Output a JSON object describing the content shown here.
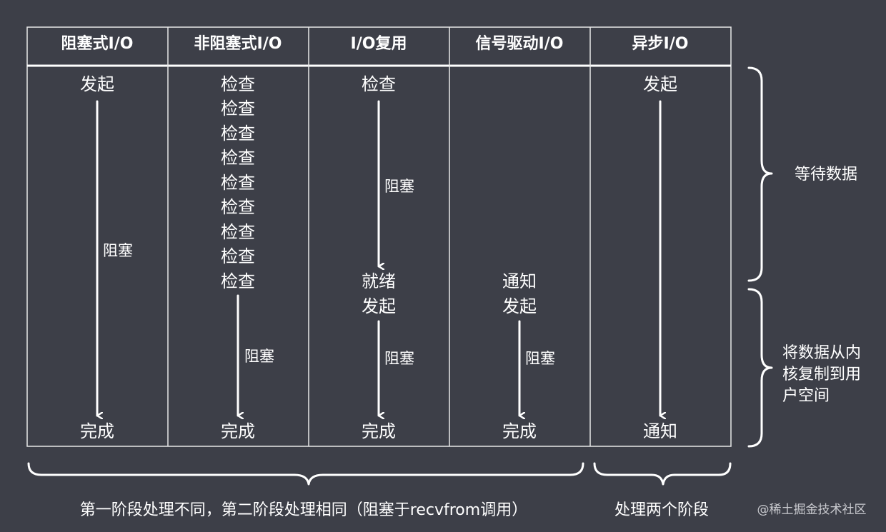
{
  "headers": [
    "阻塞式I/O",
    "非阻塞式I/O",
    "I/O复用",
    "信号驱动I/O",
    "异步I/O"
  ],
  "col1": {
    "start": "发起",
    "block": "阻塞",
    "end": "完成"
  },
  "col2": {
    "checks": [
      "检查",
      "检查",
      "检查",
      "检查",
      "检查",
      "检查",
      "检查",
      "检查",
      "检查"
    ],
    "block": "阻塞",
    "end": "完成"
  },
  "col3": {
    "check": "检查",
    "block1": "阻塞",
    "ready": "就绪",
    "start": "发起",
    "block2": "阻塞",
    "end": "完成"
  },
  "col4": {
    "notify": "通知",
    "start": "发起",
    "block": "阻塞",
    "end": "完成"
  },
  "col5": {
    "start": "发起",
    "end": "通知"
  },
  "side": {
    "wait": "等待数据",
    "copy_lines": [
      "将数据从内",
      "核复制到用",
      "户空间"
    ]
  },
  "footer": {
    "left": "第一阶段处理不同，第二阶段处理相同（阻塞于recvfrom调用）",
    "right": "处理两个阶段"
  },
  "watermark": "@稀土掘金技术社区"
}
